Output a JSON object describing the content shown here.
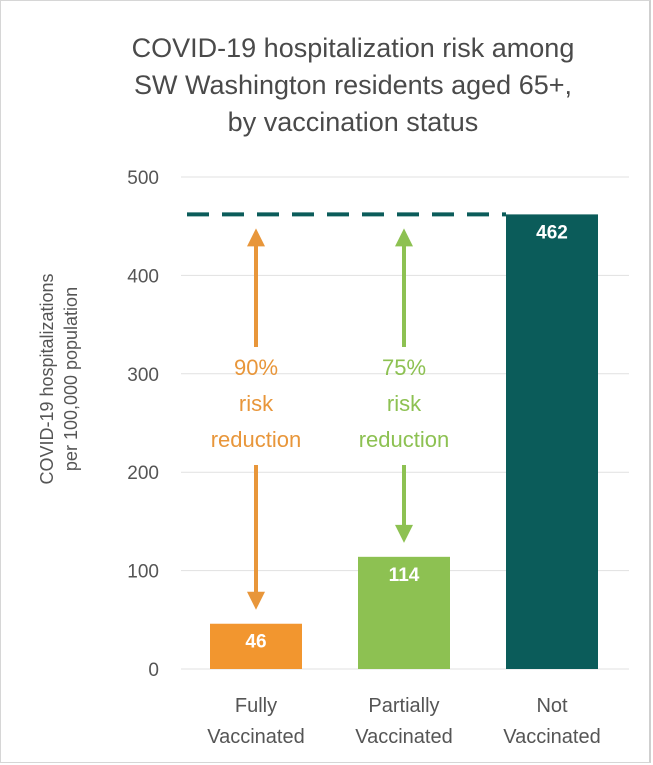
{
  "chart_data": {
    "type": "bar",
    "title_lines": [
      "COVID-19 hospitalization risk among",
      "SW Washington residents aged 65+,",
      "by vaccination status"
    ],
    "ylabel_lines": [
      "COVID-19 hospitalizations",
      "per 100,000 population"
    ],
    "xlabel": "",
    "ylim": [
      0,
      500
    ],
    "yticks": [
      0,
      100,
      200,
      300,
      400,
      500
    ],
    "grid": true,
    "categories": [
      {
        "lines": [
          "Fully",
          "Vaccinated"
        ]
      },
      {
        "lines": [
          "Partially",
          "Vaccinated"
        ]
      },
      {
        "lines": [
          "Not",
          "Vaccinated"
        ]
      }
    ],
    "values": [
      46,
      114,
      462
    ],
    "colors": [
      "#f2962f",
      "#8dc152",
      "#0b5c5a"
    ],
    "reference_line": {
      "value": 462,
      "style": "dashed",
      "color": "#0b5c5a"
    },
    "annotations": [
      {
        "category_index": 0,
        "lines": [
          "90%",
          "risk",
          "reduction"
        ],
        "color": "#e8963a",
        "from": 462,
        "to": 46
      },
      {
        "category_index": 1,
        "lines": [
          "75%",
          "risk",
          "reduction"
        ],
        "color": "#8dc152",
        "from": 462,
        "to": 114
      }
    ]
  }
}
